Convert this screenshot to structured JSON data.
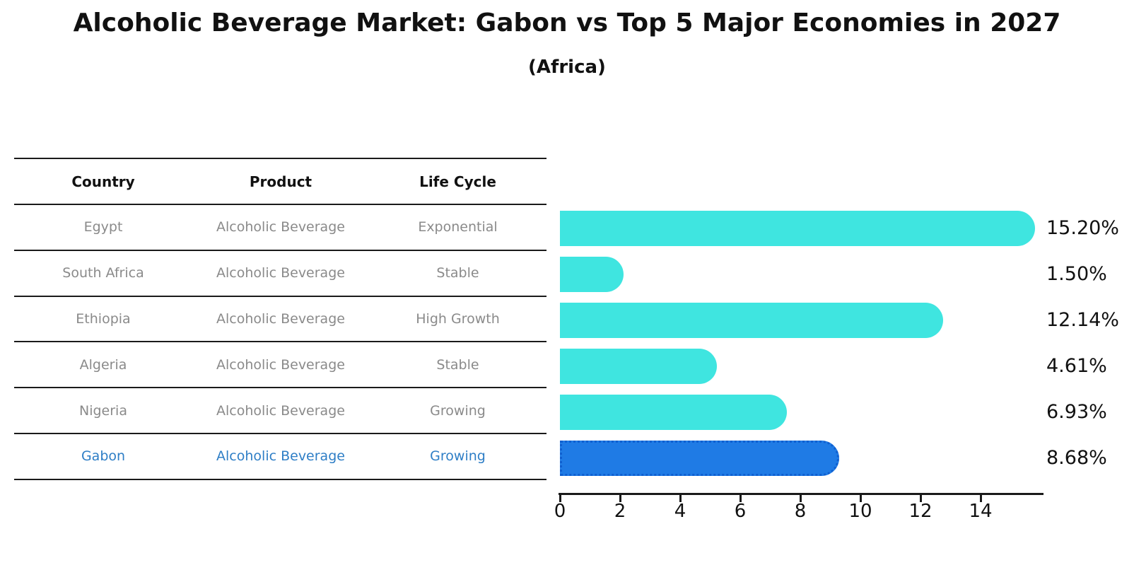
{
  "title": "Alcoholic Beverage Market: Gabon vs Top 5 Major Economies in 2027",
  "subtitle": "(Africa)",
  "table": {
    "headers": [
      "Country",
      "Product",
      "Life Cycle"
    ],
    "rows": [
      {
        "country": "Egypt",
        "product": "Alcoholic Beverage",
        "life_cycle": "Exponential",
        "highlighted": false
      },
      {
        "country": "South Africa",
        "product": "Alcoholic Beverage",
        "life_cycle": "Stable",
        "highlighted": false
      },
      {
        "country": "Ethiopia",
        "product": "Alcoholic Beverage",
        "life_cycle": "High Growth",
        "highlighted": false
      },
      {
        "country": "Algeria",
        "product": "Alcoholic Beverage",
        "life_cycle": "Stable",
        "highlighted": false
      },
      {
        "country": "Nigeria",
        "product": "Alcoholic Beverage",
        "life_cycle": "Growing",
        "highlighted": false
      },
      {
        "country": "Gabon",
        "product": "Alcoholic Beverage",
        "life_cycle": "Growing",
        "highlighted": true
      }
    ]
  },
  "chart_data": {
    "type": "bar",
    "orientation": "horizontal",
    "title": "Alcoholic Beverage Market: Gabon vs Top 5 Major Economies in 2027 (Africa)",
    "categories": [
      "Egypt",
      "South Africa",
      "Ethiopia",
      "Algeria",
      "Nigeria",
      "Gabon"
    ],
    "values": [
      15.2,
      1.5,
      12.14,
      4.61,
      6.93,
      8.68
    ],
    "value_labels": [
      "15.20%",
      "1.50%",
      "12.14%",
      "4.61%",
      "6.93%",
      "8.68%"
    ],
    "highlight_category": "Gabon",
    "highlight_index": 5,
    "xlabel": "",
    "ylabel": "",
    "xlim": [
      0,
      16.1
    ],
    "xticks": [
      0,
      2,
      4,
      6,
      8,
      10,
      12,
      14
    ],
    "grid": false,
    "legend": null,
    "colors": {
      "bar": "#3fe5e0",
      "highlight_bar": "#1f7be5",
      "highlight_bar_border": "#0f5fd0",
      "highlight_text": "#2e7ec6",
      "table_text": "#8a8a8a",
      "axis_text": "#111111"
    }
  }
}
